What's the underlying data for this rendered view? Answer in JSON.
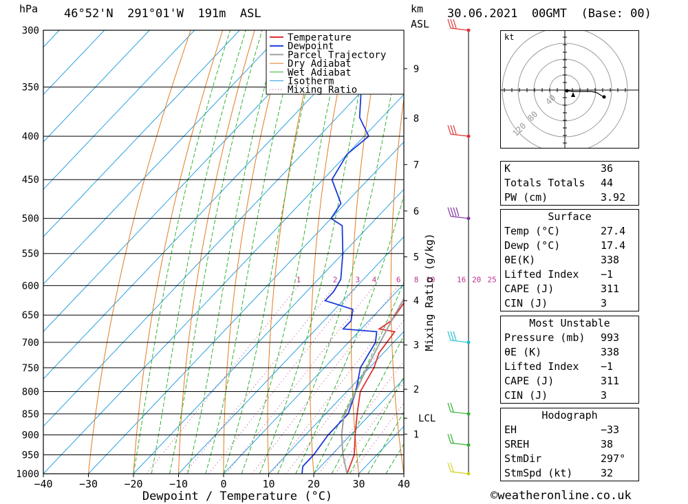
{
  "header": {
    "pressure_unit": "hPa",
    "location": "46°52'N  291°01'W  191m  ASL",
    "height_unit": "km",
    "height_unit_sub": "ASL",
    "datetime": "30.06.2021  00GMT  (Base: 00)"
  },
  "chart_data": {
    "type": "line",
    "xlabel": "Dewpoint / Temperature (°C)",
    "ylabel": "hPa",
    "xlim": [
      -40,
      40
    ],
    "ylim": [
      1000,
      300
    ],
    "x_ticks": [
      "−40",
      "−30",
      "−20",
      "−10",
      "0",
      "10",
      "20",
      "30",
      "40"
    ],
    "y_ticks": [
      "1000",
      "950",
      "900",
      "850",
      "800",
      "750",
      "700",
      "650",
      "600",
      "550",
      "500",
      "450",
      "400",
      "350",
      "300"
    ],
    "km_ticks": [
      "1",
      "2",
      "3",
      "4",
      "5",
      "6",
      "7",
      "8",
      "9"
    ],
    "lcl_label": "LCL",
    "mixing_ratio_axis_label": "Mixing Ratio (g/kg)",
    "mixing_ratio_labels": [
      "1",
      "2",
      "3",
      "4",
      "6",
      "8",
      "10",
      "16",
      "20",
      "25"
    ],
    "legend": [
      "Temperature",
      "Dewpoint",
      "Parcel Trajectory",
      "Dry Adiabat",
      "Wet Adiabat",
      "Isotherm",
      "Mixing Ratio"
    ],
    "colors": {
      "temperature": "#e03030",
      "dewpoint": "#1a3ad8",
      "parcel": "#a0a0a0",
      "dry_adiabat": "#e07a20",
      "wet_adiabat": "#30b030",
      "isotherm": "#2aa0e0",
      "mixing_ratio": "#c0308c"
    },
    "series": [
      {
        "name": "Temperature",
        "points": [
          [
            27.4,
            1000
          ],
          [
            25,
            950
          ],
          [
            21,
            900
          ],
          [
            17,
            850
          ],
          [
            13,
            800
          ],
          [
            11,
            750
          ],
          [
            9,
            720
          ],
          [
            8,
            680
          ],
          [
            4,
            675
          ],
          [
            5,
            660
          ],
          [
            3,
            600
          ],
          [
            0,
            550
          ],
          [
            -3,
            500
          ],
          [
            -8,
            450
          ],
          [
            -12,
            420
          ],
          [
            -17,
            400
          ],
          [
            -27,
            350
          ],
          [
            -35,
            310
          ],
          [
            -37,
            300
          ]
        ]
      },
      {
        "name": "Dewpoint",
        "points": [
          [
            17.4,
            1000
          ],
          [
            16,
            980
          ],
          [
            16,
            950
          ],
          [
            15,
            900
          ],
          [
            15,
            850
          ],
          [
            12,
            800
          ],
          [
            8,
            750
          ],
          [
            6,
            700
          ],
          [
            4,
            680
          ],
          [
            -4,
            675
          ],
          [
            -4,
            660
          ],
          [
            -6,
            640
          ],
          [
            -14,
            625
          ],
          [
            -14,
            610
          ],
          [
            -15,
            590
          ],
          [
            -20,
            550
          ],
          [
            -26,
            510
          ],
          [
            -30,
            500
          ],
          [
            -31,
            480
          ],
          [
            -38,
            450
          ],
          [
            -40,
            420
          ],
          [
            -39,
            400
          ],
          [
            -45,
            380
          ],
          [
            -51,
            350
          ],
          [
            -57,
            330
          ],
          [
            -55,
            325
          ],
          [
            -59,
            310
          ],
          [
            -58,
            300
          ]
        ]
      },
      {
        "name": "Parcel Trajectory",
        "points": [
          [
            27.4,
            1000
          ],
          [
            22.5,
            950
          ],
          [
            18,
            900
          ],
          [
            14.5,
            855
          ],
          [
            13,
            820
          ],
          [
            11,
            780
          ],
          [
            9,
            740
          ],
          [
            7,
            700
          ],
          [
            5,
            660
          ],
          [
            3,
            620
          ],
          [
            0,
            580
          ],
          [
            -3,
            540
          ],
          [
            -7,
            500
          ],
          [
            -11,
            470
          ],
          [
            -16,
            430
          ],
          [
            -22,
            400
          ],
          [
            -30,
            360
          ],
          [
            -38,
            320
          ],
          [
            -41,
            300
          ]
        ]
      }
    ]
  },
  "hodograph": {
    "unit_label": "kt",
    "ring_labels": [
      "40",
      "80",
      "120"
    ]
  },
  "indices": {
    "top": [
      {
        "label": "K",
        "value": "36"
      },
      {
        "label": "Totals Totals",
        "value": "44"
      },
      {
        "label": "PW (cm)",
        "value": "3.92"
      }
    ],
    "surface": {
      "title": "Surface",
      "rows": [
        {
          "label": "Temp (°C)",
          "value": "27.4"
        },
        {
          "label": "Dewp (°C)",
          "value": "17.4"
        },
        {
          "label": "θE(K)",
          "value": "338"
        },
        {
          "label": "Lifted Index",
          "value": "−1"
        },
        {
          "label": "CAPE (J)",
          "value": "311"
        },
        {
          "label": "CIN (J)",
          "value": "3"
        }
      ]
    },
    "most_unstable": {
      "title": "Most Unstable",
      "rows": [
        {
          "label": "Pressure (mb)",
          "value": "993"
        },
        {
          "label": "θE (K)",
          "value": "338"
        },
        {
          "label": "Lifted Index",
          "value": "−1"
        },
        {
          "label": "CAPE (J)",
          "value": "311"
        },
        {
          "label": "CIN (J)",
          "value": "3"
        }
      ]
    },
    "hodograph": {
      "title": "Hodograph",
      "rows": [
        {
          "label": "EH",
          "value": "−33"
        },
        {
          "label": "SREH",
          "value": "38"
        },
        {
          "label": "StmDir",
          "value": "297°"
        },
        {
          "label": "StmSpd (kt)",
          "value": "32"
        }
      ]
    }
  },
  "footer": {
    "copyright": "©weatheronline.co.uk"
  }
}
